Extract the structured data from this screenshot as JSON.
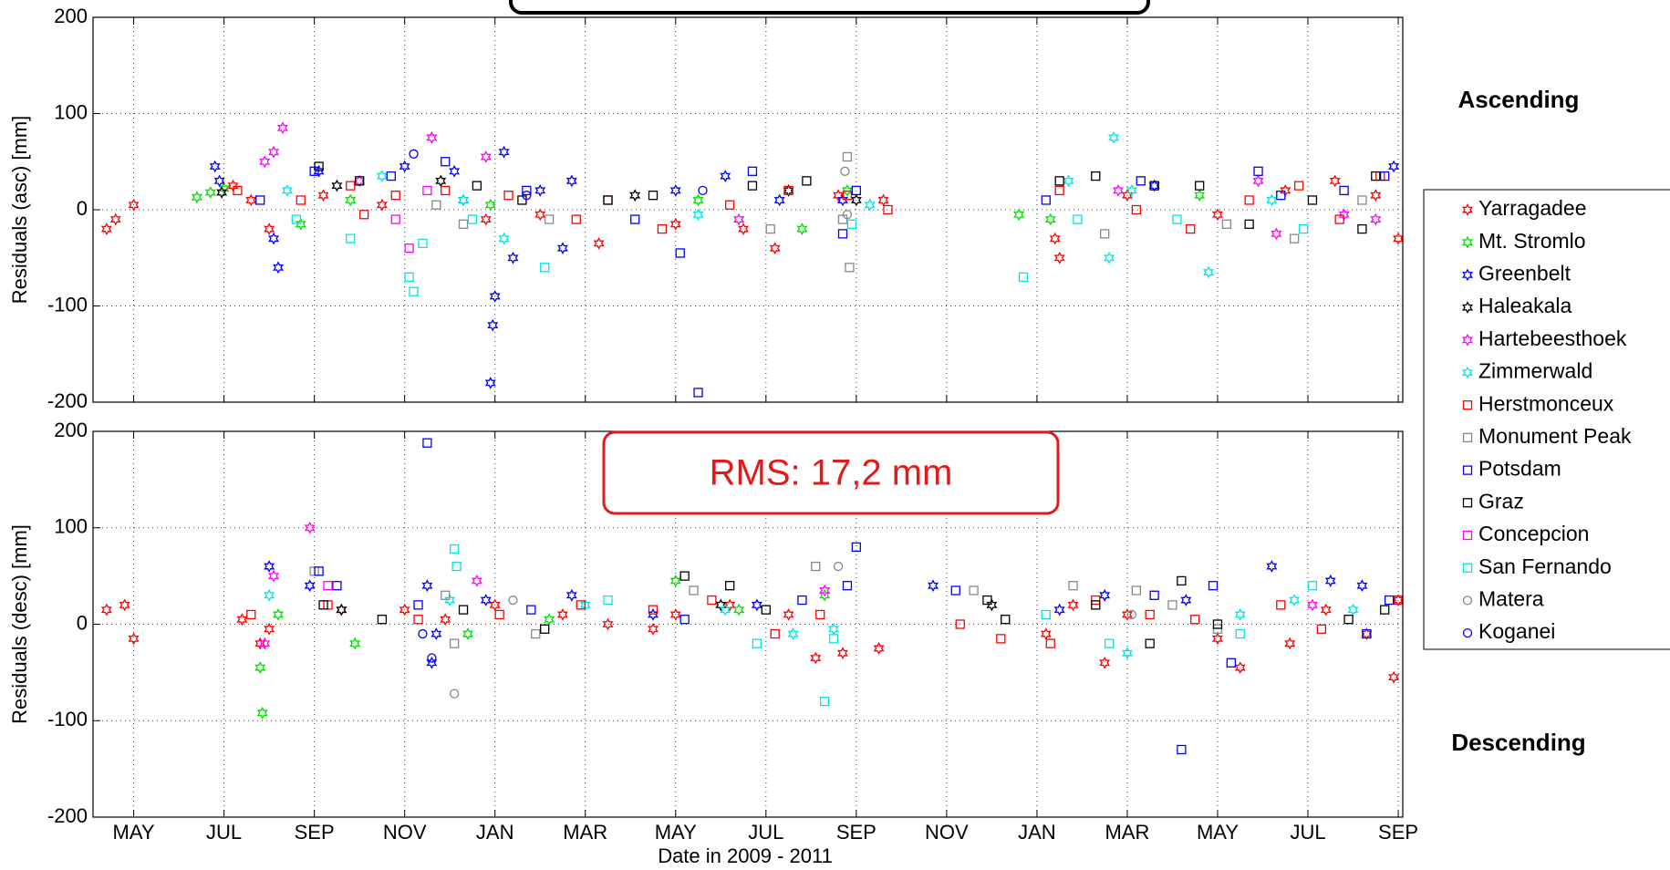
{
  "chart_data": [
    {
      "type": "scatter",
      "ylabel": "Residuals (asc) [mm]",
      "side_label": "Ascending",
      "xlim": [
        -0.9,
        28.1
      ],
      "xticks": [
        0,
        2,
        4,
        6,
        8,
        10,
        12,
        14,
        16,
        18,
        20,
        22,
        24,
        26,
        28
      ],
      "ylim": [
        -200,
        200
      ],
      "yticks": [
        -200,
        -100,
        0,
        100,
        200
      ],
      "grid": true,
      "legend": "right",
      "series": [
        {
          "name": "Yarragadee",
          "color": "#ff0000",
          "marker": "star",
          "x": [
            -0.6,
            -0.4,
            0,
            2.2,
            2.6,
            3,
            4.2,
            5.5,
            7.8,
            9,
            10.3,
            12,
            13.5,
            14.2,
            15.6,
            16.6,
            20.4,
            20.5,
            22,
            24,
            25.5,
            26.6,
            27.5,
            28
          ],
          "values": [
            -20,
            -10,
            5,
            25,
            10,
            -20,
            15,
            5,
            -10,
            -5,
            -35,
            -15,
            -20,
            -40,
            15,
            10,
            -30,
            -50,
            15,
            -5,
            20,
            30,
            15,
            -30
          ]
        },
        {
          "name": "Mt. Stromlo",
          "color": "#00dd00",
          "marker": "star",
          "x": [
            1.4,
            1.7,
            2,
            3.7,
            4.8,
            7.9,
            12.5,
            14.8,
            15.8,
            19.6,
            20.3,
            23.6
          ],
          "values": [
            13,
            18,
            22,
            -15,
            10,
            5,
            10,
            -20,
            20,
            -5,
            -10,
            15
          ]
        },
        {
          "name": "Greenbelt",
          "color": "#0000ff",
          "marker": "star",
          "x": [
            1.8,
            1.9,
            3.1,
            3.2,
            4.1,
            6,
            7.1,
            7.3,
            7.9,
            7.95,
            8,
            8.2,
            8.4,
            9,
            9.5,
            9.7,
            12,
            13.1,
            14.3,
            15.7,
            22.6,
            27.9
          ],
          "values": [
            45,
            30,
            -30,
            -60,
            40,
            45,
            40,
            10,
            -180,
            -120,
            -90,
            60,
            -50,
            20,
            -40,
            30,
            20,
            35,
            10,
            10,
            25,
            45
          ]
        },
        {
          "name": "Haleakala",
          "color": "#000000",
          "marker": "star",
          "x": [
            1.95,
            4.5,
            6.8,
            11.1,
            14.5,
            16
          ],
          "values": [
            18,
            25,
            30,
            15,
            20,
            10
          ]
        },
        {
          "name": "Hartebeesthoek",
          "color": "#ff00ff",
          "marker": "star",
          "x": [
            2.9,
            3.3,
            3.1,
            5,
            6.6,
            7.8,
            13.4,
            21.8,
            24.9,
            25.3,
            26.8,
            27.5
          ],
          "values": [
            50,
            85,
            60,
            30,
            75,
            55,
            -10,
            20,
            30,
            -25,
            -5,
            -10
          ]
        },
        {
          "name": "Zimmerwald",
          "color": "#00e5e5",
          "marker": "star",
          "x": [
            3.4,
            5.5,
            7.3,
            8.2,
            12.5,
            16.3,
            20.7,
            21.7,
            21.6,
            22.1,
            23.8,
            25.2
          ],
          "values": [
            20,
            35,
            10,
            -30,
            -5,
            5,
            30,
            75,
            -50,
            20,
            -65,
            10
          ]
        },
        {
          "name": "Herstmonceux",
          "color": "#ff0000",
          "marker": "square",
          "x": [
            2.3,
            3.7,
            4.8,
            5.1,
            5.8,
            6.9,
            8.3,
            9.8,
            10.5,
            11.7,
            13.2,
            14.5,
            15.8,
            16.7,
            20.5,
            22.2,
            23.4,
            24.7,
            25.8,
            26.7,
            27.6
          ],
          "values": [
            20,
            10,
            25,
            -5,
            15,
            20,
            15,
            -10,
            10,
            -20,
            5,
            20,
            15,
            0,
            20,
            0,
            -20,
            10,
            25,
            -10,
            35
          ]
        },
        {
          "name": "Monument Peak",
          "color": "#888888",
          "marker": "square",
          "x": [
            6.7,
            7.3,
            9.2,
            14.1,
            15.7,
            15.8,
            15.85,
            21.5,
            24.2,
            25.7,
            27.2
          ],
          "values": [
            5,
            -15,
            -10,
            -20,
            -10,
            55,
            -60,
            -25,
            -15,
            -30,
            10
          ]
        },
        {
          "name": "Potsdam",
          "color": "#0000ff",
          "marker": "square",
          "x": [
            2.8,
            4,
            5.7,
            6.9,
            8.7,
            11.1,
            12.1,
            12.5,
            13.7,
            15.7,
            16,
            20.2,
            22.3,
            24.9,
            25.4,
            26.8,
            27.7
          ],
          "values": [
            10,
            40,
            35,
            50,
            20,
            -10,
            -45,
            -190,
            40,
            -25,
            20,
            10,
            30,
            40,
            15,
            20,
            35
          ]
        },
        {
          "name": "Graz",
          "color": "#000000",
          "marker": "square",
          "x": [
            4.1,
            5,
            7.6,
            8.6,
            10.5,
            11.5,
            13.7,
            14.9,
            20.5,
            21.3,
            22.6,
            23.6,
            24.7,
            26.1,
            27.2,
            27.5
          ],
          "values": [
            45,
            30,
            25,
            10,
            10,
            15,
            25,
            30,
            30,
            35,
            25,
            25,
            -15,
            10,
            -20,
            35
          ]
        },
        {
          "name": "Concepcion",
          "color": "#ff00ff",
          "marker": "square",
          "x": [
            6.5,
            6.1,
            5.8
          ],
          "values": [
            20,
            -40,
            -10
          ]
        },
        {
          "name": "San Fernando",
          "color": "#00e5e5",
          "marker": "square",
          "x": [
            3.6,
            4.8,
            6.1,
            6.2,
            6.4,
            7.5,
            9.1,
            15.9,
            19.7,
            20.9,
            23.1,
            25.9
          ],
          "values": [
            -10,
            -30,
            -70,
            -85,
            -35,
            -10,
            -60,
            -15,
            -70,
            -10,
            -10,
            -20
          ]
        },
        {
          "name": "Matera",
          "color": "#888888",
          "marker": "circle",
          "x": [
            15.75,
            15.8
          ],
          "values": [
            40,
            -5
          ]
        },
        {
          "name": "Koganei",
          "color": "#0000ff",
          "marker": "circle",
          "x": [
            6.2,
            8.7,
            12.6
          ],
          "values": [
            58,
            15,
            20
          ]
        }
      ]
    },
    {
      "type": "scatter",
      "ylabel": "Residuals (desc) [mm]",
      "side_label": "Descending",
      "xlabel": "Date in 2009 - 2011",
      "annotation": "RMS: 17,2 mm",
      "xlim": [
        -0.9,
        28.1
      ],
      "xticks": [
        {
          "value": 0,
          "label": "MAY"
        },
        {
          "value": 2,
          "label": "JUL"
        },
        {
          "value": 4,
          "label": "SEP"
        },
        {
          "value": 6,
          "label": "NOV"
        },
        {
          "value": 8,
          "label": "JAN"
        },
        {
          "value": 10,
          "label": "MAR"
        },
        {
          "value": 12,
          "label": "MAY"
        },
        {
          "value": 14,
          "label": "JUL"
        },
        {
          "value": 16,
          "label": "SEP"
        },
        {
          "value": 18,
          "label": "NOV"
        },
        {
          "value": 20,
          "label": "JAN"
        },
        {
          "value": 22,
          "label": "MAR"
        },
        {
          "value": 24,
          "label": "MAY"
        },
        {
          "value": 26,
          "label": "JUL"
        },
        {
          "value": 28,
          "label": "SEP"
        }
      ],
      "ylim": [
        -200,
        200
      ],
      "yticks": [
        -200,
        -100,
        0,
        100,
        200
      ],
      "grid": true,
      "series": [
        {
          "x": [
            -0.6,
            -0.2,
            0,
            2.4,
            2.8,
            3,
            4.6,
            6,
            6.9,
            8,
            9.5,
            10.5,
            11.5,
            12,
            13.2,
            14.5,
            15.1,
            15.7,
            16.5,
            20.2,
            20.8,
            21.5,
            22,
            24,
            24.5,
            25.6,
            26.4,
            27.3,
            27.9,
            28
          ],
          "values": [
            15,
            20,
            -15,
            5,
            -20,
            -5,
            15,
            15,
            5,
            20,
            10,
            0,
            -5,
            10,
            20,
            10,
            -35,
            -30,
            -25,
            -10,
            20,
            -40,
            10,
            -15,
            -45,
            -20,
            15,
            -10,
            -55,
            25
          ]
        },
        {
          "x": [
            2.8,
            2.85,
            3.2,
            4.9,
            7.4,
            9.2,
            12,
            13.4,
            15.3
          ],
          "values": [
            -45,
            -92,
            10,
            -20,
            -10,
            5,
            45,
            15,
            30
          ]
        },
        {
          "x": [
            3,
            3.9,
            6.5,
            6.6,
            6.7,
            7.8,
            9.7,
            11.5,
            13.8,
            17.7,
            20.5,
            21.5,
            23.3,
            25.2,
            26.5,
            27.2
          ],
          "values": [
            60,
            40,
            40,
            -40,
            -10,
            25,
            30,
            10,
            20,
            40,
            15,
            30,
            25,
            60,
            45,
            40
          ]
        },
        {
          "x": [
            4.6,
            13,
            19
          ],
          "values": [
            15,
            20,
            20
          ]
        },
        {
          "x": [
            3.1,
            3.9,
            2.9,
            7.6,
            15.3,
            26.1
          ],
          "values": [
            50,
            100,
            -20,
            45,
            35,
            20
          ]
        },
        {
          "x": [
            3,
            7,
            10,
            13.1,
            14.6,
            15.5,
            22,
            24.5,
            25.7,
            27
          ],
          "values": [
            30,
            25,
            20,
            15,
            -10,
            -5,
            -30,
            10,
            25,
            15
          ]
        },
        {
          "x": [
            2.6,
            4.3,
            6.3,
            8.1,
            9.9,
            11.5,
            12.8,
            14.2,
            15.2,
            18.3,
            19.2,
            20.3,
            21.3,
            22.5,
            23.5,
            25.4,
            26.3,
            28
          ],
          "values": [
            10,
            20,
            5,
            10,
            20,
            15,
            25,
            -10,
            10,
            0,
            -15,
            -20,
            25,
            10,
            5,
            20,
            -5,
            25
          ]
        },
        {
          "x": [
            4,
            6.9,
            7.1,
            8.9,
            12.4,
            15.1,
            18.6,
            20.8,
            22.2,
            23,
            24
          ],
          "values": [
            55,
            30,
            -20,
            -10,
            35,
            60,
            35,
            40,
            35,
            20,
            -5
          ]
        },
        {
          "x": [
            4.1,
            4.5,
            6.3,
            8.8,
            12.2,
            14.8,
            15.8,
            16,
            18.2,
            22.6,
            23.2,
            23.9,
            24.3,
            27.3,
            27.8,
            6.5
          ],
          "values": [
            55,
            40,
            20,
            15,
            5,
            25,
            40,
            80,
            35,
            30,
            -130,
            40,
            -40,
            -10,
            25,
            188
          ]
        },
        {
          "x": [
            4.2,
            5.5,
            7.3,
            9.1,
            12.2,
            13.2,
            14,
            18.9,
            19.3,
            21.3,
            22.5,
            23.2,
            24,
            26.9,
            27.7
          ],
          "values": [
            20,
            5,
            15,
            -5,
            50,
            40,
            15,
            25,
            5,
            20,
            -20,
            45,
            0,
            5,
            15
          ]
        },
        {
          "x": [
            4.3
          ],
          "values": [
            40
          ]
        },
        {
          "x": [
            7.1,
            7.15,
            10.5,
            13.8,
            15.3,
            15.5,
            20.2,
            21.6,
            24.5,
            26.1
          ],
          "values": [
            78,
            60,
            25,
            -20,
            -80,
            -15,
            10,
            -20,
            -10,
            40
          ]
        },
        {
          "x": [
            7.1,
            8.4,
            15.6,
            22.1
          ],
          "values": [
            -72,
            25,
            60,
            10
          ]
        },
        {
          "x": [
            6.4,
            6.6
          ],
          "values": [
            -10,
            -35
          ]
        }
      ]
    }
  ]
}
